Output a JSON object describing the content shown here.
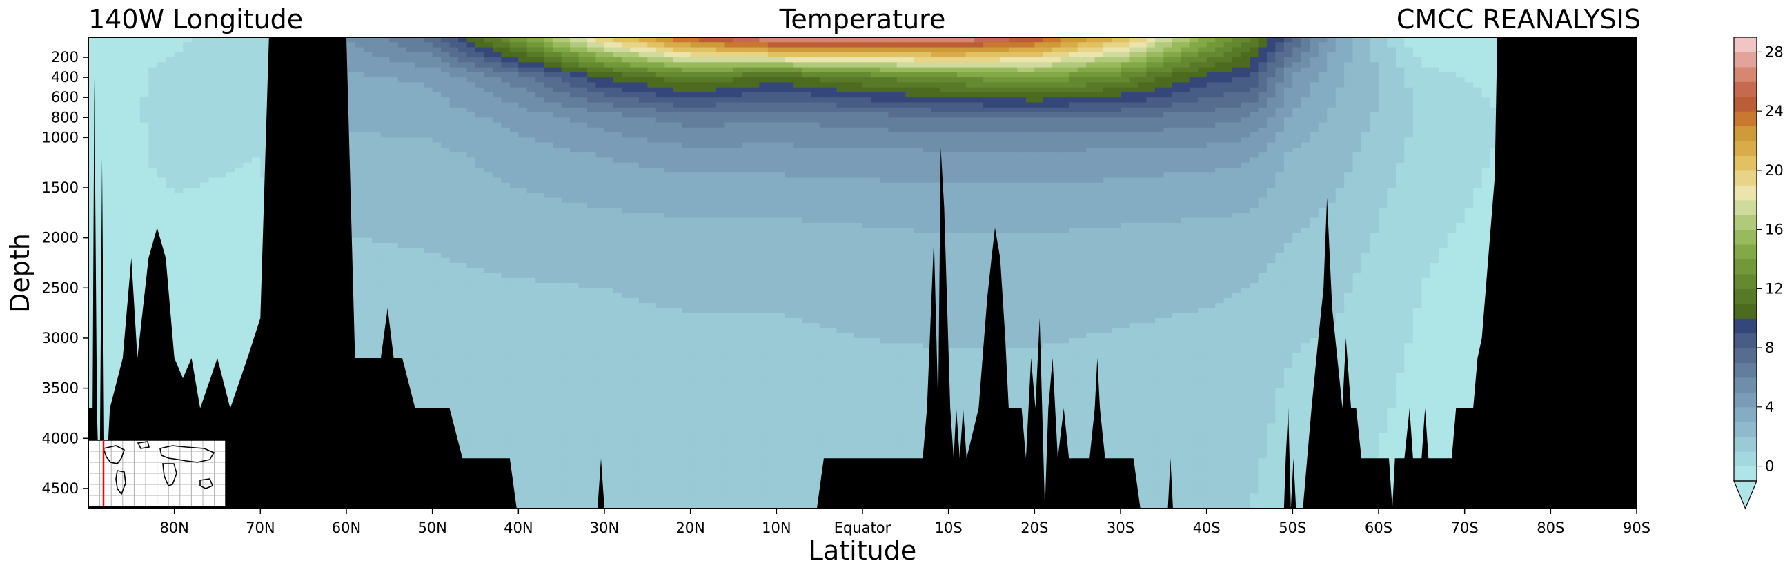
{
  "chart_data": {
    "type": "contourf",
    "title_left": "140W Longitude",
    "title_center": "Temperature",
    "title_right": "CMCC REANALYSIS",
    "xlabel": "Latitude",
    "ylabel": "Depth",
    "x_ticks": [
      {
        "value": 80,
        "label": "80N"
      },
      {
        "value": 70,
        "label": "70N"
      },
      {
        "value": 60,
        "label": "60N"
      },
      {
        "value": 50,
        "label": "50N"
      },
      {
        "value": 40,
        "label": "40N"
      },
      {
        "value": 30,
        "label": "30N"
      },
      {
        "value": 20,
        "label": "20N"
      },
      {
        "value": 10,
        "label": "10N"
      },
      {
        "value": 0,
        "label": "Equator"
      },
      {
        "value": -10,
        "label": "10S"
      },
      {
        "value": -20,
        "label": "20S"
      },
      {
        "value": -30,
        "label": "30S"
      },
      {
        "value": -40,
        "label": "40S"
      },
      {
        "value": -50,
        "label": "50S"
      },
      {
        "value": -60,
        "label": "60S"
      },
      {
        "value": -70,
        "label": "70S"
      },
      {
        "value": -80,
        "label": "80S"
      },
      {
        "value": -90,
        "label": "90S"
      }
    ],
    "y_ticks": [
      {
        "value": 200,
        "label": "200"
      },
      {
        "value": 400,
        "label": "400"
      },
      {
        "value": 600,
        "label": "600"
      },
      {
        "value": 800,
        "label": "800"
      },
      {
        "value": 1000,
        "label": "1000"
      },
      {
        "value": 1500,
        "label": "1500"
      },
      {
        "value": 2000,
        "label": "2000"
      },
      {
        "value": 2500,
        "label": "2500"
      },
      {
        "value": 3000,
        "label": "3000"
      },
      {
        "value": 3500,
        "label": "3500"
      },
      {
        "value": 4000,
        "label": "4000"
      },
      {
        "value": 4500,
        "label": "4500"
      }
    ],
    "xlim": [
      90,
      -90
    ],
    "ylim": [
      4700,
      0
    ],
    "colorbar": {
      "ticks": [
        {
          "value": 0,
          "label": "0"
        },
        {
          "value": 4,
          "label": "4"
        },
        {
          "value": 8,
          "label": "8"
        },
        {
          "value": 12,
          "label": "12"
        },
        {
          "value": 16,
          "label": "16"
        },
        {
          "value": 20,
          "label": "20"
        },
        {
          "value": 24,
          "label": "24"
        },
        {
          "value": 28,
          "label": "28"
        }
      ],
      "range": [
        -1,
        29
      ],
      "extend": "min",
      "colors": [
        "#aee5e6",
        "#a4d8df",
        "#99cad6",
        "#8ebacb",
        "#84acc2",
        "#7a9cb6",
        "#6f8ea9",
        "#637e9c",
        "#566d8f",
        "#485d85",
        "#34467a",
        "#4d6b1f",
        "#587a28",
        "#648930",
        "#729839",
        "#83a848",
        "#98b95c",
        "#b0c97a",
        "#cfdb9c",
        "#ebe5ad",
        "#e7d486",
        "#e2c163",
        "#d9ab49",
        "#cf9a3a",
        "#c8782f",
        "#bb5d36",
        "#c66a4f",
        "#d6876f",
        "#e2a49a",
        "#f0c5c4"
      ]
    },
    "temperature_profile": [
      {
        "lat": 89,
        "t": [
          -0.5,
          -0.5,
          -0.6,
          -0.6,
          -0.7,
          -0.7,
          -0.7,
          -0.7
        ]
      },
      {
        "lat": 80,
        "t": [
          -0.2,
          0.3,
          0.4,
          0.3,
          -0.2,
          -0.5,
          -0.6,
          -0.6
        ]
      },
      {
        "lat": 70,
        "t": [
          0.8,
          0.6,
          0.4,
          0.0,
          -0.4,
          -0.6,
          -0.6,
          -0.6
        ]
      },
      {
        "lat": 60,
        "t": [
          5.0,
          3.8,
          3.2,
          2.6,
          2.1,
          1.7,
          1.5,
          1.5
        ]
      },
      {
        "lat": 50,
        "t": [
          7.5,
          4.2,
          3.4,
          2.7,
          2.2,
          1.8,
          1.6,
          1.5
        ]
      },
      {
        "lat": 40,
        "t": [
          14.0,
          6.5,
          4.4,
          3.4,
          2.6,
          1.9,
          1.6,
          1.5
        ]
      },
      {
        "lat": 30,
        "t": [
          20.0,
          10.0,
          5.5,
          4.0,
          2.8,
          2.0,
          1.7,
          1.5
        ]
      },
      {
        "lat": 20,
        "t": [
          24.5,
          12.0,
          6.5,
          4.4,
          3.0,
          2.1,
          1.7,
          1.5
        ]
      },
      {
        "lat": 10,
        "t": [
          27.5,
          10.5,
          6.2,
          4.4,
          3.0,
          2.1,
          1.7,
          1.5
        ]
      },
      {
        "lat": 0,
        "t": [
          27.0,
          12.0,
          6.5,
          4.5,
          3.1,
          2.2,
          1.8,
          1.5
        ]
      },
      {
        "lat": -10,
        "t": [
          27.5,
          13.0,
          7.0,
          4.6,
          3.2,
          2.3,
          1.8,
          1.5
        ]
      },
      {
        "lat": -20,
        "t": [
          25.0,
          14.0,
          7.0,
          4.6,
          3.2,
          2.3,
          1.8,
          1.5
        ]
      },
      {
        "lat": -30,
        "t": [
          21.0,
          12.5,
          7.0,
          4.5,
          3.1,
          2.2,
          1.7,
          1.4
        ]
      },
      {
        "lat": -40,
        "t": [
          15.0,
          9.5,
          6.5,
          4.3,
          3.0,
          2.1,
          1.6,
          1.3
        ]
      },
      {
        "lat": -45,
        "t": [
          12.0,
          9.0,
          6.0,
          4.1,
          2.9,
          2.0,
          1.5,
          1.0
        ]
      },
      {
        "lat": -50,
        "t": [
          8.0,
          5.0,
          3.8,
          2.8,
          2.2,
          1.4,
          0.8,
          0.3
        ]
      },
      {
        "lat": -55,
        "t": [
          4.0,
          3.2,
          2.8,
          2.4,
          1.8,
          1.2,
          0.6,
          0.1
        ]
      },
      {
        "lat": -60,
        "t": [
          1.5,
          2.0,
          1.9,
          1.5,
          1.0,
          0.6,
          0.2,
          -0.2
        ]
      },
      {
        "lat": -65,
        "t": [
          -1.0,
          0.5,
          0.8,
          0.6,
          0.2,
          0.0,
          -0.3,
          -0.5
        ]
      },
      {
        "lat": -70,
        "t": [
          -1.5,
          0.0,
          0.5,
          0.3,
          0.0,
          -0.3,
          -0.5,
          -0.6
        ]
      },
      {
        "lat": -75,
        "t": [
          -1.7,
          -0.5,
          0.0,
          -0.2,
          -0.5,
          -0.6,
          -0.7,
          -0.7
        ]
      },
      {
        "lat": -90,
        "t": [
          -1.8,
          -1.0,
          -0.5,
          -0.5,
          -0.7,
          -0.7,
          -0.8,
          -0.8
        ]
      }
    ],
    "profile_depths": [
      0,
      400,
      800,
      1200,
      1800,
      2500,
      3500,
      4700
    ],
    "bathymetry": [
      [
        89.5,
        3700
      ],
      [
        89.3,
        400
      ],
      [
        89.0,
        3700
      ],
      [
        88.7,
        4700
      ],
      [
        88.4,
        1200
      ],
      [
        88.1,
        4700
      ],
      [
        87.5,
        3700
      ],
      [
        86.0,
        3200
      ],
      [
        85.0,
        2200
      ],
      [
        84.3,
        3200
      ],
      [
        83.0,
        2200
      ],
      [
        82.0,
        1900
      ],
      [
        81.0,
        2200
      ],
      [
        80.0,
        3200
      ],
      [
        79.0,
        3400
      ],
      [
        78.0,
        3200
      ],
      [
        77.0,
        3700
      ],
      [
        75.0,
        3200
      ],
      [
        73.5,
        3700
      ],
      [
        71.5,
        3200
      ],
      [
        70.0,
        2800
      ],
      [
        69.0,
        0
      ],
      [
        60.0,
        0
      ],
      [
        59.0,
        3200
      ],
      [
        56.0,
        3200
      ],
      [
        55.2,
        2700
      ],
      [
        54.5,
        3200
      ],
      [
        53.5,
        3200
      ],
      [
        52.0,
        3700
      ],
      [
        48.0,
        3700
      ],
      [
        46.5,
        4200
      ],
      [
        41.0,
        4200
      ],
      [
        40.2,
        4700
      ],
      [
        30.8,
        4700
      ],
      [
        30.4,
        4200
      ],
      [
        30.0,
        4700
      ],
      [
        5.3,
        4700
      ],
      [
        4.5,
        4200
      ],
      [
        -7.0,
        4200
      ],
      [
        -7.5,
        3700
      ],
      [
        -8.3,
        2000
      ],
      [
        -8.8,
        3700
      ],
      [
        -9.1,
        1100
      ],
      [
        -9.5,
        1700
      ],
      [
        -10.2,
        3700
      ],
      [
        -10.6,
        4200
      ],
      [
        -10.9,
        3700
      ],
      [
        -11.3,
        4200
      ],
      [
        -11.7,
        3700
      ],
      [
        -12.1,
        4200
      ],
      [
        -13.5,
        3700
      ],
      [
        -14.5,
        2600
      ],
      [
        -15.0,
        2200
      ],
      [
        -15.4,
        1900
      ],
      [
        -16.0,
        2200
      ],
      [
        -16.6,
        3000
      ],
      [
        -17.0,
        3700
      ],
      [
        -18.5,
        3700
      ],
      [
        -19.0,
        4200
      ],
      [
        -19.6,
        3200
      ],
      [
        -20.1,
        3700
      ],
      [
        -20.6,
        2800
      ],
      [
        -21.2,
        4700
      ],
      [
        -21.6,
        3700
      ],
      [
        -22.1,
        3200
      ],
      [
        -22.7,
        4200
      ],
      [
        -23.4,
        3700
      ],
      [
        -24.0,
        4200
      ],
      [
        -26.4,
        4200
      ],
      [
        -27.0,
        3700
      ],
      [
        -27.3,
        3200
      ],
      [
        -27.6,
        3700
      ],
      [
        -28.2,
        4200
      ],
      [
        -31.5,
        4200
      ],
      [
        -32.3,
        4700
      ],
      [
        -35.5,
        4700
      ],
      [
        -35.8,
        4200
      ],
      [
        -36.1,
        4700
      ],
      [
        -49.0,
        4700
      ],
      [
        -49.2,
        4200
      ],
      [
        -49.5,
        3700
      ],
      [
        -49.8,
        4700
      ],
      [
        -50.1,
        4200
      ],
      [
        -50.4,
        4700
      ],
      [
        -51.2,
        4700
      ],
      [
        -51.7,
        4200
      ],
      [
        -52.2,
        3700
      ],
      [
        -53.0,
        3000
      ],
      [
        -53.6,
        2500
      ],
      [
        -54.0,
        1600
      ],
      [
        -54.6,
        2700
      ],
      [
        -55.2,
        3200
      ],
      [
        -55.8,
        3700
      ],
      [
        -56.2,
        3000
      ],
      [
        -56.8,
        3700
      ],
      [
        -57.4,
        3700
      ],
      [
        -58.0,
        4200
      ],
      [
        -61.2,
        4200
      ],
      [
        -61.6,
        4700
      ],
      [
        -61.9,
        4200
      ],
      [
        -63.0,
        4200
      ],
      [
        -63.6,
        3700
      ],
      [
        -64.0,
        4200
      ],
      [
        -65.0,
        4200
      ],
      [
        -65.4,
        3700
      ],
      [
        -65.8,
        4200
      ],
      [
        -68.5,
        4200
      ],
      [
        -69.0,
        3700
      ],
      [
        -71.0,
        3700
      ],
      [
        -71.5,
        3200
      ],
      [
        -72.0,
        3000
      ],
      [
        -73.5,
        1400
      ],
      [
        -73.8,
        0
      ]
    ],
    "inset_map": {
      "description_visible": "world map locator",
      "meridian_color": "#ff0000"
    }
  }
}
